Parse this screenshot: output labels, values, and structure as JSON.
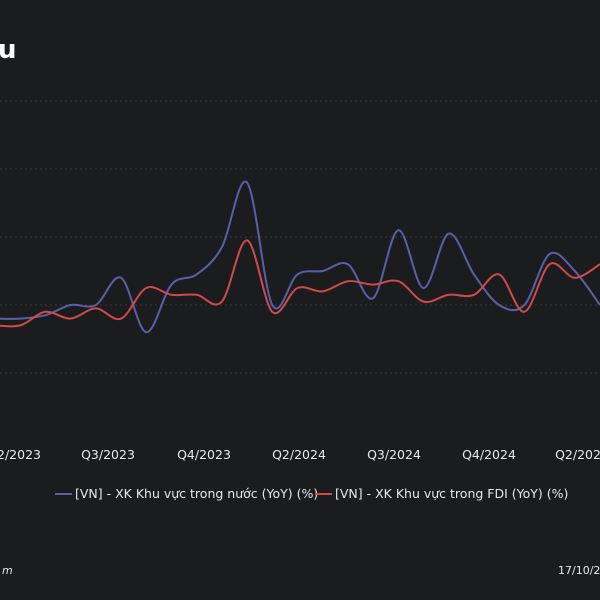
{
  "chart_data": {
    "type": "line",
    "title": "u",
    "xlabel": "",
    "ylabel": "",
    "x_ticks": [
      "2/2023",
      "Q3/2023",
      "Q4/2023",
      "Q2/2024",
      "Q3/2024",
      "Q4/2024",
      "Q2/202"
    ],
    "grid": true,
    "legend_position": "bottom",
    "series": [
      {
        "name": "[VN] - XK Khu vực trong nước (YoY) (%)",
        "color": "#5a5fa8",
        "values": [
          -4,
          -4,
          -3,
          0,
          0,
          8,
          -8,
          6,
          9,
          17,
          36,
          0,
          9,
          10,
          12,
          2,
          22,
          5,
          21,
          9,
          0,
          0,
          15,
          10,
          0
        ]
      },
      {
        "name": "[VN] - XK Khu vực trong FDI (YoY) (%)",
        "color": "#d14a4a",
        "values": [
          -6,
          -6,
          -2,
          -4,
          -1,
          -4,
          5,
          3,
          3,
          1,
          19,
          -2,
          5,
          4,
          7,
          6,
          7,
          1,
          3,
          3,
          9,
          -2,
          12,
          8,
          12
        ]
      }
    ],
    "footer_left": "m",
    "footer_right": "17/10/2"
  }
}
